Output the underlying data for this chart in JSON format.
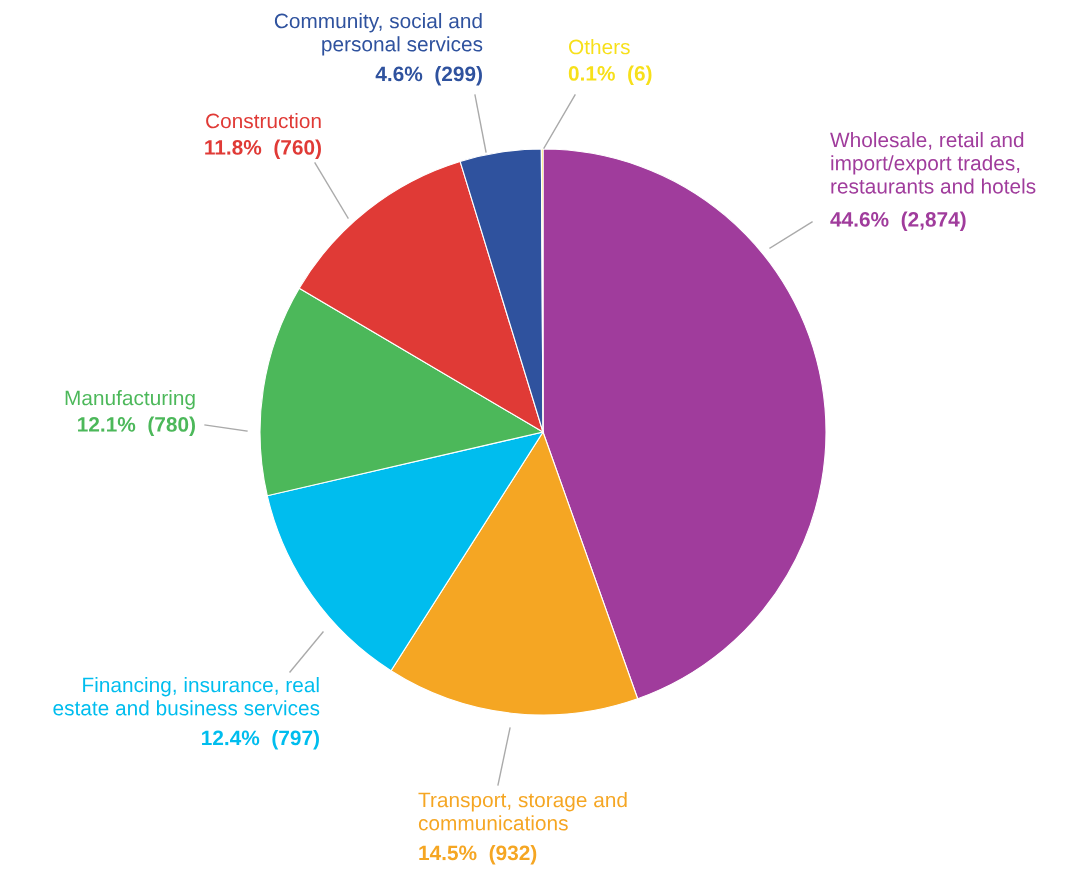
{
  "chart_data": {
    "type": "pie",
    "categories": [
      "Wholesale, retail and\nimport/export trades,\nrestaurants and hotels",
      "Transport, storage and\ncommunications",
      "Financing, insurance, real\nestate and business services",
      "Manufacturing",
      "Construction",
      "Community, social and\npersonal services",
      "Others"
    ],
    "values": [
      2874,
      932,
      797,
      780,
      760,
      299,
      6
    ],
    "colors": [
      "#a03c9c",
      "#f5a623",
      "#00bdee",
      "#4cb85a",
      "#e03a36",
      "#2f529e",
      "#f7e01a"
    ],
    "value_labels": [
      "44.6%  (2,874)",
      "14.5%  (932)",
      "12.4%  (797)",
      "12.1%  (780)",
      "11.8%  (760)",
      "4.6%  (299)",
      "0.1%  (6)"
    ]
  }
}
